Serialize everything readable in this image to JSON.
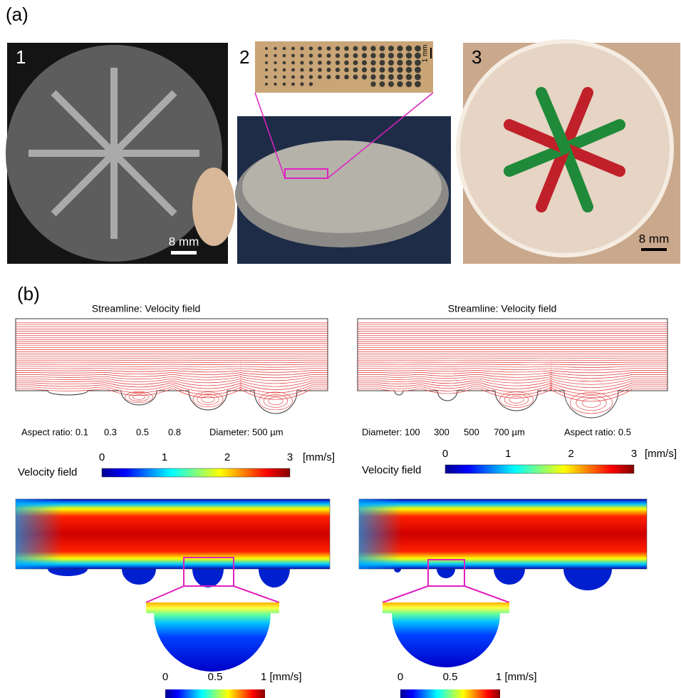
{
  "panel_a": {
    "label": "(a)",
    "photo_1": {
      "number": "1",
      "scale": "8 mm"
    },
    "photo_2": {
      "number": "2",
      "inset_scale": "1 mm"
    },
    "photo_3": {
      "number": "3",
      "scale": "8 mm"
    }
  },
  "panel_b": {
    "label": "(b)",
    "left": {
      "title": "Streamline: Velocity field",
      "captions": [
        "Aspect ratio:  0.1",
        "0.3",
        "0.5",
        "0.8"
      ],
      "caption_right": "Diameter: 500 µm",
      "colorbar": {
        "name": "Velocity field",
        "ticks": [
          0,
          1,
          2,
          3
        ],
        "unit": "[mm/s]"
      },
      "zoom_colorbar": {
        "ticks": [
          0,
          0.5
        ],
        "end": "1 [mm/s]"
      }
    },
    "right": {
      "title": "Streamline: Velocity field",
      "captions": [
        "Diameter: 100",
        "300",
        "500",
        "700 µm"
      ],
      "caption_right": "Aspect ratio: 0.5",
      "colorbar": {
        "name": "Velocity field",
        "ticks": [
          0,
          1,
          2,
          3
        ],
        "unit": "[mm/s]"
      },
      "zoom_colorbar": {
        "ticks": [
          0,
          0.5
        ],
        "end": "1 [mm/s]"
      }
    }
  }
}
